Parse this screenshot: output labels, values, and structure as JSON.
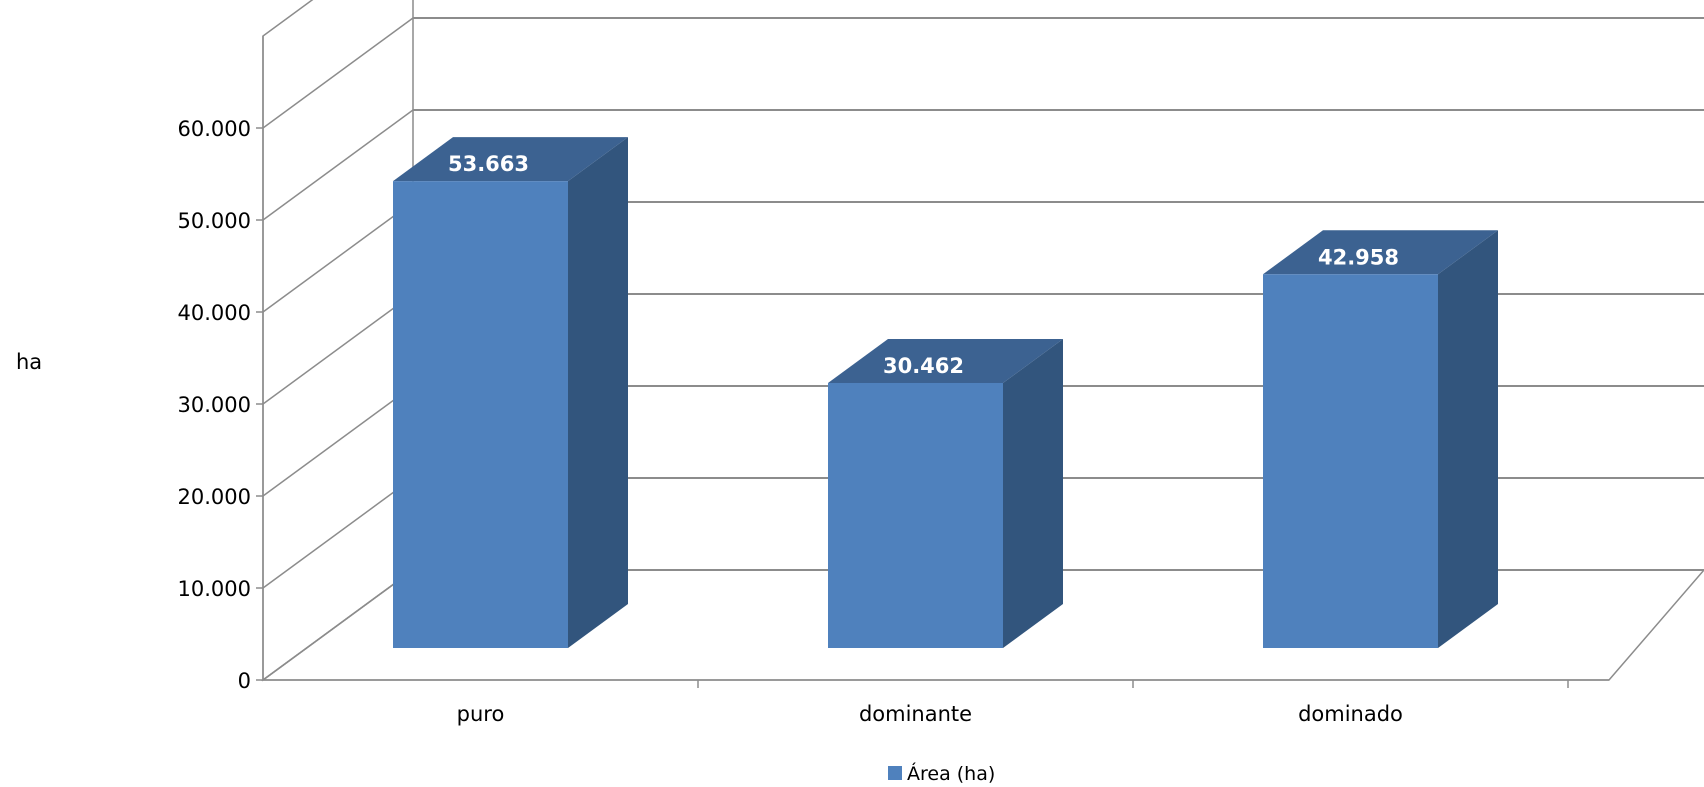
{
  "chart_data": {
    "type": "bar",
    "style": "3d-column",
    "categories": [
      "puro",
      "dominante",
      "dominado"
    ],
    "series": [
      {
        "name": "Área (ha)",
        "values": [
          53663,
          30462,
          42958
        ],
        "color": "#4F81BD"
      }
    ],
    "data_labels": [
      "53.663",
      "30.462",
      "42.958"
    ],
    "ylabel": "ha",
    "xlabel": "",
    "title": "",
    "ylim": [
      0,
      60000
    ],
    "y_ticks": [
      0,
      10000,
      20000,
      30000,
      40000,
      50000,
      60000
    ],
    "y_tick_labels": [
      "0",
      "10.000",
      "20.000",
      "30.000",
      "40.000",
      "50.000",
      "60.000"
    ],
    "grid": true,
    "legend_position": "bottom",
    "colors": {
      "bar_front": "#4F81BD",
      "bar_top": "#3C6291",
      "bar_side": "#32557D",
      "grid": "#8C8C8C"
    }
  }
}
